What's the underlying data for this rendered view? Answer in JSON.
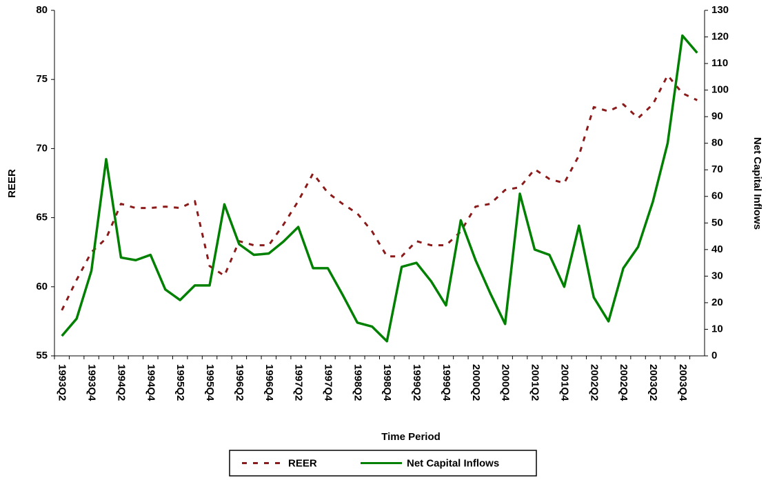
{
  "chart_data": {
    "type": "line",
    "x_label": "Time Period",
    "y_label": "REER",
    "y2_label": "Net Capital Inflows",
    "categories": [
      "1993Q2",
      null,
      "1993Q4",
      null,
      "1994Q2",
      null,
      "1994Q4",
      null,
      "1995Q2",
      null,
      "1995Q4",
      null,
      "1996Q2",
      null,
      "1996Q4",
      null,
      "1997Q2",
      null,
      "1997Q4",
      null,
      "1998Q2",
      null,
      "1998Q4",
      null,
      "1999Q2",
      null,
      "1999Q4",
      null,
      "2000Q2",
      null,
      "2000Q4",
      null,
      "2001Q2",
      null,
      "2001Q4",
      null,
      "2002Q2",
      null,
      "2002Q4",
      null,
      "2003Q2",
      null,
      "2003Q4",
      null
    ],
    "series": [
      {
        "name": "REER",
        "color": "#8b1a1a",
        "line_style": "dashed",
        "values": [
          58.3,
          60.5,
          62.5,
          63.5,
          66,
          65.7,
          65.7,
          65.8,
          65.7,
          66.2,
          61.5,
          60.8,
          63.3,
          63,
          63,
          64.5,
          66.2,
          68.2,
          66.8,
          66,
          65.3,
          64,
          62.2,
          62.2,
          63.3,
          63,
          63,
          64,
          65.8,
          66,
          67,
          67.2,
          68.5,
          67.8,
          67.5,
          69.5,
          73,
          72.7,
          73.2,
          72.2,
          73.2,
          75.3,
          74,
          73.5
        ]
      },
      {
        "name": "Net Capital Inflows",
        "color": "#008000",
        "line_style": "solid",
        "axis": "y2",
        "values": [
          7.5,
          14,
          32,
          74,
          37,
          36,
          38,
          25,
          21,
          26.5,
          26.5,
          57,
          42,
          38,
          38.5,
          43,
          48.5,
          33,
          33,
          23,
          12.5,
          11,
          5.5,
          33.5,
          35,
          28,
          19,
          51,
          36,
          23.5,
          12,
          61,
          40,
          38,
          26,
          49,
          22,
          13,
          33,
          41,
          58,
          80,
          120.5,
          114
        ]
      }
    ],
    "ylim": [
      55,
      80
    ],
    "yticks": [
      55,
      60,
      65,
      70,
      75,
      80
    ],
    "y2lim": [
      0,
      130
    ],
    "y2ticks": [
      0,
      10,
      20,
      30,
      40,
      50,
      60,
      70,
      80,
      90,
      100,
      110,
      120,
      130
    ],
    "legend": "bottom"
  }
}
